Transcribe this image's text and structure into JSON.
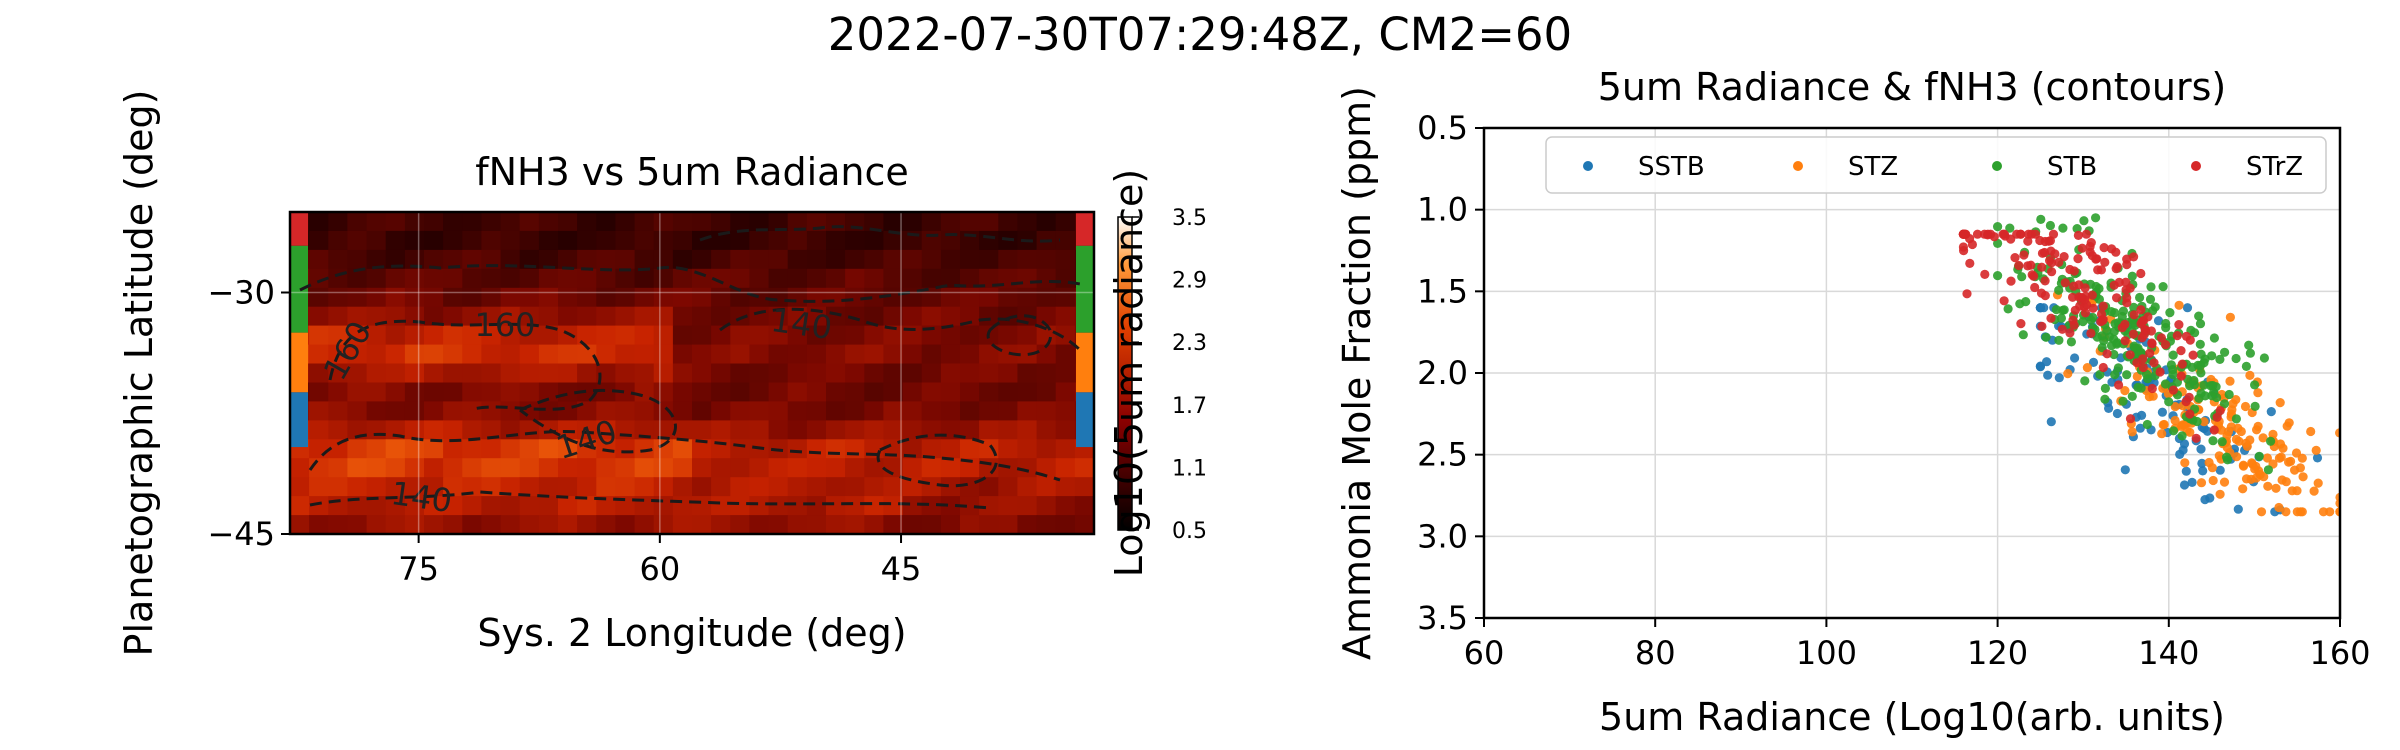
{
  "suptitle": "2022-07-30T07:29:48Z, CM2=60",
  "chart_data": [
    {
      "type": "heatmap",
      "title": "fNH3 vs 5um Radiance",
      "xlabel": "Sys. 2 Longitude (deg)",
      "ylabel": "Planetographic Latitude (deg)",
      "xlim": [
        83,
        33
      ],
      "ylim": [
        -45,
        -25
      ],
      "xticks": [
        75,
        60,
        45
      ],
      "yticks": [
        -30,
        -45
      ],
      "colorbar": {
        "label": "Log10(5um radiance)",
        "range": [
          0.5,
          3.5
        ],
        "ticks": [
          "3.5",
          "2.9",
          "2.3",
          "1.7",
          "1.1",
          "0.5"
        ],
        "colormap": "gist_heat"
      },
      "contour_labels": [
        "160",
        "160",
        "140",
        "140",
        "140"
      ],
      "belt_bands": [
        {
          "name": "STrZ",
          "color": "#d62728",
          "lat": [
            -27.1,
            -25
          ]
        },
        {
          "name": "STB",
          "color": "#2ca02c",
          "lat": [
            -32.5,
            -27.1
          ]
        },
        {
          "name": "STZ",
          "color": "#ff7f0e",
          "lat": [
            -36.2,
            -32.5
          ]
        },
        {
          "name": "SSTB",
          "color": "#1f77b4",
          "lat": [
            -39.6,
            -36.2
          ]
        }
      ]
    },
    {
      "type": "scatter",
      "title": "5um Radiance & fNH3 (contours)",
      "xlabel": "5um Radiance (Log10(arb. units)",
      "ylabel": "Ammonia Mole Fraction (ppm)",
      "xlim": [
        60,
        160
      ],
      "ylim": [
        3.5,
        0.5
      ],
      "xticks": [
        60,
        80,
        100,
        120,
        140,
        160
      ],
      "yticks": [
        "0.5",
        "1.0",
        "1.5",
        "2.0",
        "2.5",
        "3.0",
        "3.5"
      ],
      "grid": true,
      "legend_position": "top",
      "series": [
        {
          "name": "SSTB",
          "color": "#1f77b4",
          "x_range": [
            125,
            158
          ],
          "y_range": [
            1.6,
            2.85
          ],
          "center": [
            138,
            2.15
          ],
          "count": 110
        },
        {
          "name": "STZ",
          "color": "#ff7f0e",
          "x_range": [
            127,
            160
          ],
          "y_range": [
            1.3,
            2.85
          ],
          "center": [
            146,
            2.3
          ],
          "count": 170
        },
        {
          "name": "STB",
          "color": "#2ca02c",
          "x_range": [
            120,
            160
          ],
          "y_range": [
            1.05,
            2.75
          ],
          "center": [
            136,
            1.75
          ],
          "count": 230
        },
        {
          "name": "STrZ",
          "color": "#d62728",
          "x_range": [
            116,
            146
          ],
          "y_range": [
            1.15,
            2.4
          ],
          "center": [
            130,
            1.5
          ],
          "count": 170
        }
      ]
    }
  ]
}
